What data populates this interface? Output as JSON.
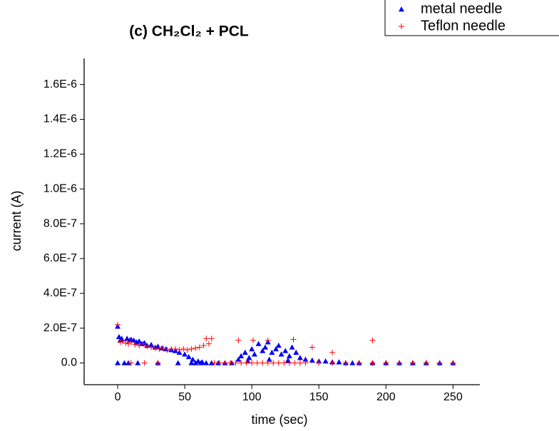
{
  "chart_data": {
    "type": "scatter",
    "title": "(c) CH₂Cl₂ + PCL",
    "x_label": "time (sec)",
    "y_label": "current (A)",
    "xlim": [
      -25,
      270
    ],
    "xticks": [
      0,
      50,
      100,
      150,
      200,
      250
    ],
    "ylim": [
      -1.25e-07,
      1.75e-06
    ],
    "yticks": [
      {
        "value": 0,
        "label": "0.0"
      },
      {
        "value": 2e-07,
        "label": "2.0E-7"
      },
      {
        "value": 4e-07,
        "label": "4.0E-7"
      },
      {
        "value": 6e-07,
        "label": "6.0E-7"
      },
      {
        "value": 8e-07,
        "label": "8.0E-7"
      },
      {
        "value": 1e-06,
        "label": "1.0E-6"
      },
      {
        "value": 1.2e-06,
        "label": "1.2E-6"
      },
      {
        "value": 1.4e-06,
        "label": "1.4E-6"
      },
      {
        "value": 1.6e-06,
        "label": "1.6E-6"
      }
    ],
    "series": [
      {
        "name": "metal needle",
        "color": "#0000ff",
        "marker": "triangle",
        "x": [
          0,
          0,
          1,
          2,
          3,
          5,
          7,
          9,
          10,
          12,
          14,
          16,
          18,
          20,
          22,
          25,
          28,
          30,
          33,
          36,
          40,
          43,
          46,
          50,
          53,
          56,
          60,
          63,
          8,
          15,
          30,
          45,
          55,
          58,
          62,
          66,
          70,
          75,
          80,
          85,
          90,
          92,
          95,
          98,
          100,
          102,
          105,
          108,
          110,
          112,
          115,
          118,
          120,
          122,
          125,
          128,
          130,
          133,
          136,
          140,
          145,
          150,
          155,
          160,
          165,
          170,
          175,
          180,
          190,
          200,
          210,
          220,
          230,
          240,
          250,
          97,
          113,
          127
        ],
        "values": [
          2.1e-07,
          0,
          1.5e-07,
          1.3e-07,
          1.4e-07,
          0,
          1.4e-07,
          1.3e-07,
          1.35e-07,
          1.3e-07,
          1.2e-07,
          1.25e-07,
          1.1e-07,
          1.15e-07,
          1e-07,
          1.05e-07,
          9e-08,
          9.5e-08,
          8.5e-08,
          8e-08,
          7.5e-08,
          7e-08,
          6e-08,
          5e-08,
          3.5e-08,
          2e-08,
          1e-08,
          5e-09,
          0,
          0,
          0,
          0,
          0,
          0,
          0,
          0,
          0,
          0,
          0,
          0,
          2e-08,
          4e-08,
          6e-08,
          3e-08,
          8e-08,
          5e-08,
          1.1e-07,
          7e-08,
          9e-08,
          1.2e-07,
          6e-08,
          8e-08,
          1e-07,
          5e-08,
          7e-08,
          4e-08,
          9e-08,
          6e-08,
          3e-08,
          2e-08,
          1.5e-08,
          1e-08,
          1e-08,
          5e-09,
          5e-09,
          0,
          0,
          0,
          0,
          0,
          0,
          0,
          0,
          0,
          0,
          1e-08,
          2e-08,
          1.5e-08
        ]
      },
      {
        "name": "Teflon needle",
        "color": "#ff0000",
        "marker": "plus",
        "x": [
          0,
          2,
          4,
          6,
          8,
          10,
          13,
          16,
          19,
          22,
          25,
          28,
          31,
          34,
          37,
          40,
          43,
          46,
          49,
          52,
          55,
          58,
          61,
          64,
          66,
          68,
          70,
          10,
          20,
          30,
          72,
          76,
          80,
          84,
          88,
          92,
          96,
          100,
          104,
          108,
          112,
          116,
          120,
          124,
          128,
          132,
          136,
          140,
          150,
          160,
          170,
          180,
          190,
          200,
          210,
          220,
          230,
          240,
          250,
          90,
          101,
          112,
          131,
          145,
          160,
          190
        ],
        "values": [
          2.2e-07,
          1.2e-07,
          1.25e-07,
          1.15e-07,
          1.1e-07,
          1.2e-07,
          1.05e-07,
          1e-07,
          1.1e-07,
          9.5e-08,
          9e-08,
          8.5e-08,
          8e-08,
          8.5e-08,
          7.5e-08,
          8e-08,
          8e-08,
          7.5e-08,
          8e-08,
          7.5e-08,
          8e-08,
          8.5e-08,
          9e-08,
          1e-07,
          1.4e-07,
          1.1e-07,
          1.4e-07,
          0,
          0,
          0,
          0,
          0,
          0,
          0,
          0,
          0,
          0,
          0,
          0,
          0,
          0,
          0,
          0,
          0,
          0,
          0,
          0,
          0,
          0,
          0,
          0,
          0,
          0,
          0,
          0,
          0,
          0,
          0,
          0,
          1.3e-07,
          1.3e-07,
          1.3e-07,
          1.35e-07,
          9e-08,
          6e-08,
          1.3e-07
        ]
      }
    ]
  }
}
